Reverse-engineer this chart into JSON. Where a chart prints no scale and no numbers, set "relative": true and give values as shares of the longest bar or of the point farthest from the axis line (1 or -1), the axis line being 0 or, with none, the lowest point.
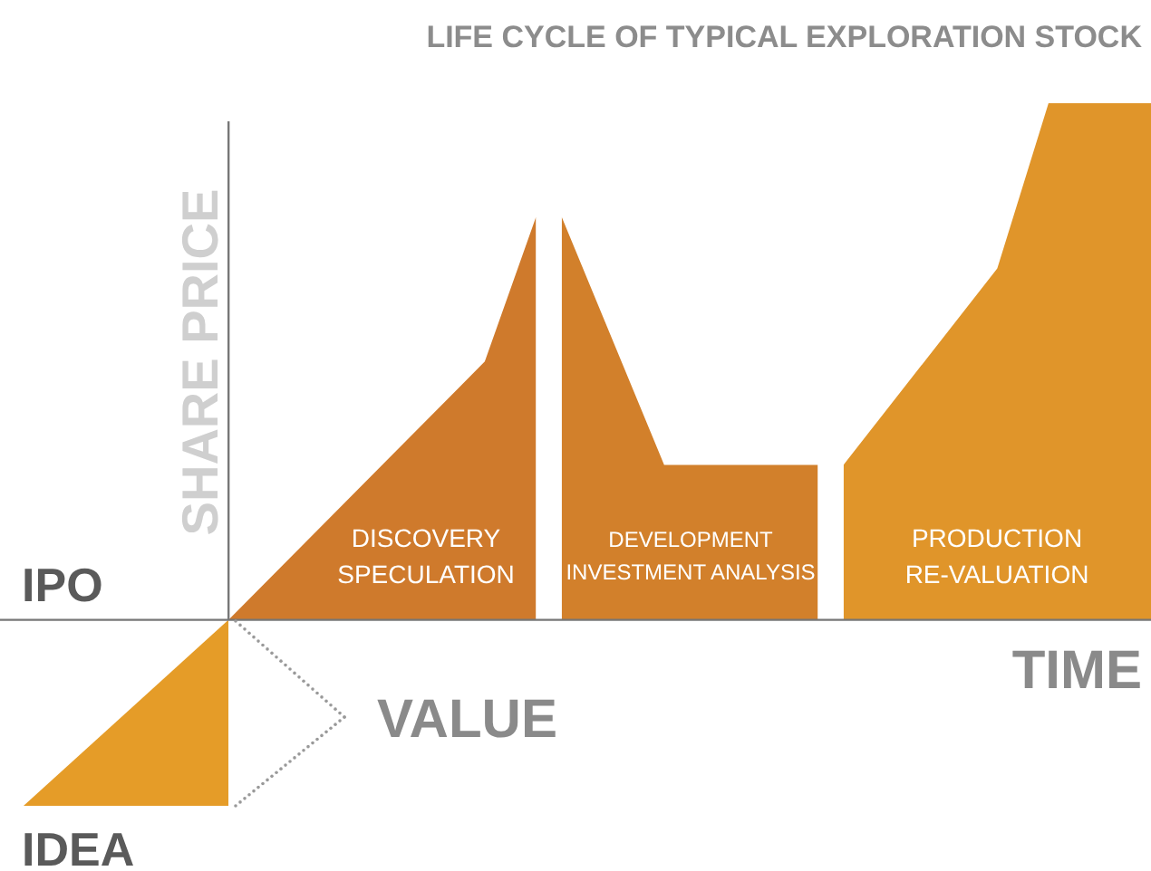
{
  "chart_data": {
    "type": "area",
    "relative": true,
    "title": "LIFE CYCLE OF TYPICAL EXPLORATION STOCK",
    "ylabel": "SHARE PRICE",
    "xlabel": "TIME",
    "categories": [
      null,
      null,
      null,
      null,
      null,
      null,
      null,
      null,
      null,
      null,
      null,
      null,
      null,
      null,
      null,
      null,
      null,
      null,
      null,
      null,
      null,
      null,
      null,
      null,
      null,
      null,
      null,
      null,
      null,
      null,
      null,
      null,
      null,
      null,
      null,
      null,
      null,
      null,
      null,
      null,
      null,
      null,
      null,
      null,
      null
    ],
    "series": [
      {
        "color": "#e59c28",
        "values": [
          -0.36,
          null,
          null,
          null,
          null,
          null,
          null,
          null,
          0,
          null,
          null,
          null,
          null,
          null,
          null,
          null,
          null,
          null,
          null,
          null,
          null,
          null,
          null,
          null,
          null,
          null,
          null,
          null,
          null,
          null,
          null,
          null,
          null,
          null,
          null,
          null,
          null,
          null,
          null,
          null,
          null,
          null,
          null,
          null,
          null
        ]
      },
      {
        "color": "#cf7a2c",
        "values": [
          null,
          null,
          null,
          null,
          null,
          null,
          null,
          null,
          0,
          null,
          null,
          null,
          null,
          null,
          null,
          null,
          null,
          null,
          0.5,
          null,
          0.78,
          null,
          null,
          null,
          null,
          null,
          null,
          null,
          null,
          null,
          null,
          null,
          null,
          null,
          null,
          null,
          null,
          null,
          null,
          null,
          null,
          null,
          null,
          null,
          null
        ]
      },
      {
        "color": "#d2802b",
        "values": [
          null,
          null,
          null,
          null,
          null,
          null,
          null,
          null,
          null,
          null,
          null,
          null,
          null,
          null,
          null,
          null,
          null,
          null,
          null,
          null,
          null,
          0.78,
          null,
          null,
          null,
          0.3,
          null,
          null,
          null,
          null,
          null,
          0.3,
          null,
          null,
          null,
          null,
          null,
          null,
          null,
          null,
          null,
          null,
          null,
          null,
          null
        ]
      },
      {
        "color": "#e0952a",
        "values": [
          null,
          null,
          null,
          null,
          null,
          null,
          null,
          null,
          null,
          null,
          null,
          null,
          null,
          null,
          null,
          null,
          null,
          null,
          null,
          null,
          null,
          null,
          null,
          null,
          null,
          null,
          null,
          null,
          null,
          null,
          null,
          null,
          0.3,
          null,
          null,
          null,
          null,
          null,
          0.68,
          null,
          1,
          null,
          null,
          null,
          1
        ]
      }
    ],
    "annotations": [
      "IPO",
      "IDEA",
      "VALUE",
      "DISCOVERY\nSPECULATION",
      "DEVELOPMENT\nINVESTMENT ANALYSIS",
      "PRODUCTION\nRE-VALUATION"
    ]
  }
}
